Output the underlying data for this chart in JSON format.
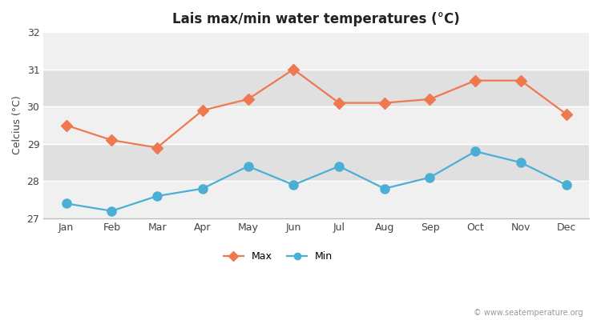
{
  "title": "Lais max/min water temperatures (°C)",
  "ylabel": "Celcius (°C)",
  "months": [
    "Jan",
    "Feb",
    "Mar",
    "Apr",
    "May",
    "Jun",
    "Jul",
    "Aug",
    "Sep",
    "Oct",
    "Nov",
    "Dec"
  ],
  "max_temps": [
    29.5,
    29.1,
    28.9,
    29.9,
    30.2,
    31.0,
    30.1,
    30.1,
    30.2,
    30.7,
    30.7,
    29.8
  ],
  "min_temps": [
    27.4,
    27.2,
    27.6,
    27.8,
    28.4,
    27.9,
    28.4,
    27.8,
    28.1,
    28.8,
    28.5,
    27.9
  ],
  "max_color": "#f07850",
  "min_color": "#4bafd5",
  "ylim": [
    27,
    32
  ],
  "yticks": [
    27,
    28,
    29,
    30,
    31,
    32
  ],
  "bg_color": "#ffffff",
  "band_light": "#f0f0f0",
  "band_dark": "#e0e0e0",
  "watermark": "© www.seatemperature.org",
  "title_fontsize": 12,
  "axis_fontsize": 9,
  "marker_size_max": 7,
  "marker_size_min": 8
}
